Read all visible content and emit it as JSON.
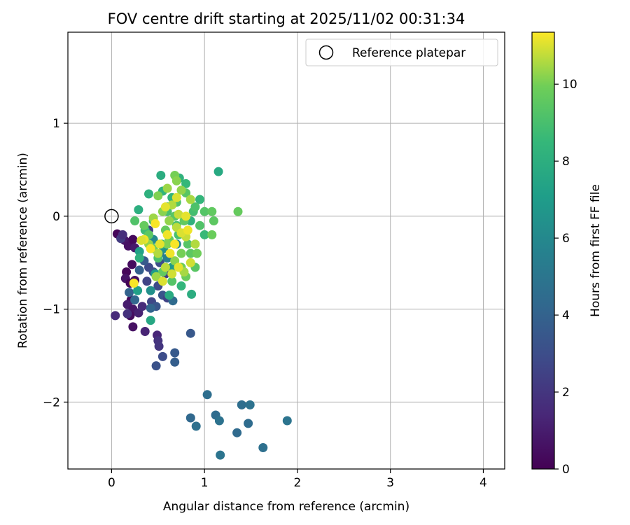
{
  "chart_data": {
    "type": "scatter",
    "title": "FOV centre drift starting at 2025/11/02 00:31:34",
    "xlabel": "Angular distance from reference (arcmin)",
    "ylabel": "Rotation from reference (arcmin)",
    "xlim": [
      -0.47,
      4.23
    ],
    "ylim": [
      -2.72,
      1.98
    ],
    "x_ticks": [
      0,
      1,
      2,
      3,
      4
    ],
    "y_ticks": [
      -2,
      -1,
      0,
      1
    ],
    "grid": true,
    "legend": {
      "placement": "top-right",
      "entries": [
        {
          "label": "Reference platepar",
          "marker": "open-circle"
        }
      ]
    },
    "reference_point": {
      "x": 0,
      "y": 0
    },
    "colorbar": {
      "label": "Hours from first FF file",
      "min": 0,
      "max": 11.35,
      "ticks": [
        0,
        2,
        4,
        6,
        8,
        10
      ],
      "colormap": "viridis"
    },
    "points": [
      [
        0.06,
        -0.19,
        0.2
      ],
      [
        0.1,
        -0.24,
        0.5
      ],
      [
        0.14,
        -0.26,
        0.8
      ],
      [
        0.18,
        -0.32,
        0.6
      ],
      [
        0.23,
        -0.25,
        0.3
      ],
      [
        0.25,
        -0.34,
        0.9
      ],
      [
        0.22,
        -0.52,
        0.4
      ],
      [
        0.16,
        -0.6,
        0.2
      ],
      [
        0.15,
        -0.67,
        0.7
      ],
      [
        0.2,
        -0.72,
        0.1
      ],
      [
        0.25,
        -0.69,
        0.5
      ],
      [
        0.21,
        -0.9,
        0.3
      ],
      [
        0.17,
        -0.95,
        1.0
      ],
      [
        0.23,
        -1.0,
        0.8
      ],
      [
        0.2,
        -1.07,
        0.4
      ],
      [
        0.23,
        -1.19,
        0.6
      ],
      [
        0.04,
        -1.07,
        1.5
      ],
      [
        0.17,
        -1.05,
        1.8
      ],
      [
        0.29,
        -1.04,
        1.2
      ],
      [
        0.33,
        -0.97,
        1.6
      ],
      [
        0.36,
        -1.24,
        1.3
      ],
      [
        0.49,
        -1.28,
        1.4
      ],
      [
        0.5,
        -1.34,
        1.9
      ],
      [
        0.51,
        -1.4,
        2.0
      ],
      [
        0.1,
        -0.24,
        2.2
      ],
      [
        0.12,
        -0.2,
        1.7
      ],
      [
        0.4,
        -0.15,
        2.4
      ],
      [
        0.55,
        -1.51,
        3.0
      ],
      [
        0.48,
        -1.61,
        3.2
      ],
      [
        0.68,
        -1.47,
        3.6
      ],
      [
        0.68,
        -1.57,
        3.8
      ],
      [
        0.85,
        -1.26,
        3.5
      ],
      [
        0.4,
        -0.55,
        2.8
      ],
      [
        0.45,
        -0.6,
        3.1
      ],
      [
        0.38,
        -0.7,
        2.6
      ],
      [
        0.5,
        -0.75,
        2.9
      ],
      [
        0.55,
        -0.85,
        3.3
      ],
      [
        0.6,
        -0.88,
        2.5
      ],
      [
        0.43,
        -0.92,
        2.7
      ],
      [
        0.48,
        -0.97,
        3.4
      ],
      [
        0.52,
        -0.5,
        3.0
      ],
      [
        0.58,
        -0.62,
        2.3
      ],
      [
        0.35,
        -0.48,
        3.6
      ],
      [
        0.3,
        -0.58,
        3.9
      ],
      [
        0.19,
        -0.82,
        4.0
      ],
      [
        0.25,
        -0.9,
        4.2
      ],
      [
        0.66,
        -0.91,
        4.4
      ],
      [
        0.42,
        -0.99,
        4.1
      ],
      [
        1.03,
        -1.92,
        4.6
      ],
      [
        1.12,
        -2.14,
        4.5
      ],
      [
        1.16,
        -2.2,
        4.8
      ],
      [
        0.85,
        -2.17,
        4.3
      ],
      [
        0.91,
        -2.26,
        4.7
      ],
      [
        1.17,
        -2.57,
        4.9
      ],
      [
        1.35,
        -2.33,
        4.4
      ],
      [
        1.4,
        -2.03,
        4.6
      ],
      [
        1.49,
        -2.03,
        4.8
      ],
      [
        1.47,
        -2.23,
        4.5
      ],
      [
        1.63,
        -2.49,
        4.7
      ],
      [
        1.89,
        -2.2,
        4.9
      ],
      [
        0.52,
        -0.4,
        5.2
      ],
      [
        0.6,
        -0.45,
        5.5
      ],
      [
        0.7,
        -0.3,
        5.8
      ],
      [
        0.45,
        -0.25,
        6.1
      ],
      [
        0.56,
        -0.35,
        6.5
      ],
      [
        0.65,
        -0.55,
        6.8
      ],
      [
        0.42,
        -0.8,
        6.4
      ],
      [
        0.47,
        -0.62,
        7.0
      ],
      [
        0.3,
        -0.38,
        7.3
      ],
      [
        0.28,
        -0.8,
        7.2
      ],
      [
        0.42,
        -1.12,
        7.6
      ],
      [
        0.62,
        -0.85,
        7.8
      ],
      [
        0.86,
        -0.84,
        7.9
      ],
      [
        1.15,
        0.48,
        7.7
      ],
      [
        0.53,
        0.44,
        7.9
      ],
      [
        0.29,
        0.07,
        8.0
      ],
      [
        0.4,
        0.24,
        8.1
      ],
      [
        0.55,
        0.27,
        8.3
      ],
      [
        0.73,
        0.41,
        8.2
      ],
      [
        0.8,
        0.35,
        8.5
      ],
      [
        0.95,
        0.18,
        8.4
      ],
      [
        0.6,
        0.1,
        8.6
      ],
      [
        0.45,
        -0.05,
        8.8
      ],
      [
        0.36,
        -0.15,
        8.7
      ],
      [
        0.7,
        -0.1,
        8.9
      ],
      [
        0.85,
        -0.05,
        8.2
      ],
      [
        1.0,
        -0.2,
        8.6
      ],
      [
        0.65,
        0.2,
        8.3
      ],
      [
        0.88,
        0.05,
        8.9
      ],
      [
        0.3,
        -0.45,
        8.1
      ],
      [
        0.75,
        -0.75,
        8.4
      ],
      [
        0.54,
        -0.3,
        8.8
      ],
      [
        0.6,
        0.05,
        9.0
      ],
      [
        0.7,
        0.15,
        9.2
      ],
      [
        0.8,
        0.25,
        9.4
      ],
      [
        0.9,
        0.1,
        9.1
      ],
      [
        1.0,
        0.05,
        9.3
      ],
      [
        1.08,
        0.05,
        9.6
      ],
      [
        1.1,
        -0.05,
        9.5
      ],
      [
        1.08,
        -0.2,
        9.8
      ],
      [
        1.36,
        0.05,
        9.7
      ],
      [
        0.95,
        -0.1,
        9.2
      ],
      [
        0.85,
        -0.4,
        9.5
      ],
      [
        0.75,
        -0.55,
        9.9
      ],
      [
        0.9,
        -0.55,
        9.4
      ],
      [
        0.8,
        -0.65,
        9.8
      ],
      [
        0.65,
        -0.7,
        9.3
      ],
      [
        0.55,
        -0.6,
        9.6
      ],
      [
        0.5,
        -0.45,
        9.1
      ],
      [
        0.45,
        -0.35,
        9.9
      ],
      [
        0.4,
        -0.2,
        9.5
      ],
      [
        0.35,
        -0.1,
        9.7
      ],
      [
        0.25,
        -0.05,
        9.2
      ],
      [
        0.62,
        -0.25,
        9.8
      ],
      [
        0.72,
        -0.2,
        9.0
      ],
      [
        0.78,
        -0.05,
        9.6
      ],
      [
        0.68,
        0.0,
        9.4
      ],
      [
        0.58,
        -0.15,
        9.7
      ],
      [
        0.82,
        -0.3,
        9.3
      ],
      [
        0.92,
        -0.4,
        9.9
      ],
      [
        0.68,
        0.44,
        10.0
      ],
      [
        0.7,
        0.38,
        10.2
      ],
      [
        0.6,
        0.3,
        10.4
      ],
      [
        0.5,
        0.22,
        10.1
      ],
      [
        0.75,
        0.28,
        10.3
      ],
      [
        0.85,
        0.18,
        10.5
      ],
      [
        0.65,
        0.12,
        10.6
      ],
      [
        0.55,
        0.05,
        10.2
      ],
      [
        0.45,
        -0.02,
        10.4
      ],
      [
        0.7,
        -0.12,
        10.7
      ],
      [
        0.8,
        -0.22,
        10.8
      ],
      [
        0.6,
        -0.3,
        10.1
      ],
      [
        0.5,
        -0.4,
        10.6
      ],
      [
        0.4,
        -0.3,
        10.3
      ],
      [
        0.85,
        -0.5,
        10.9
      ],
      [
        0.78,
        -0.6,
        10.5
      ],
      [
        0.68,
        -0.48,
        10.2
      ],
      [
        0.58,
        -0.55,
        10.7
      ],
      [
        0.48,
        -0.65,
        10.4
      ],
      [
        0.65,
        -0.62,
        10.9
      ],
      [
        0.75,
        -0.4,
        10.0
      ],
      [
        0.9,
        -0.3,
        10.6
      ],
      [
        0.72,
        0.02,
        10.8
      ],
      [
        0.62,
        -0.05,
        10.3
      ],
      [
        0.7,
        0.2,
        11.0
      ],
      [
        0.8,
        0.0,
        11.1
      ],
      [
        0.6,
        -0.2,
        11.2
      ],
      [
        0.47,
        -0.08,
        11.3
      ],
      [
        0.75,
        -0.18,
        11.0
      ],
      [
        0.63,
        -0.4,
        11.2
      ],
      [
        0.52,
        -0.3,
        11.1
      ],
      [
        0.42,
        -0.35,
        11.3
      ],
      [
        0.35,
        -0.25,
        11.2
      ],
      [
        0.32,
        -0.26,
        11.0
      ],
      [
        0.24,
        -0.72,
        11.3
      ],
      [
        0.72,
        -0.55,
        11.1
      ],
      [
        0.82,
        -0.15,
        11.2
      ],
      [
        0.55,
        -0.7,
        11.0
      ],
      [
        0.68,
        -0.3,
        11.3
      ],
      [
        0.58,
        0.1,
        11.1
      ]
    ]
  }
}
